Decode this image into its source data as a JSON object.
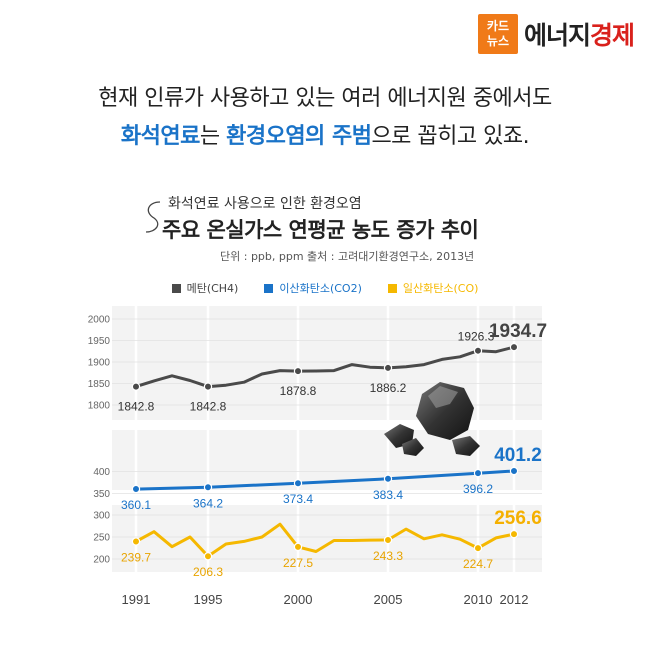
{
  "brand": {
    "badge_line1": "카드",
    "badge_line2": "뉴스",
    "name_part1": "에너지",
    "name_part2": "경제"
  },
  "headline": {
    "line1": "현재 인류가 사용하고 있는 여러 에너지원 중에서도",
    "line2_part1": "화석연료",
    "line2_part2": "는 ",
    "line2_part3": "환경오염의 주범",
    "line2_part4": "으로 꼽히고 있죠."
  },
  "chart_data": {
    "type": "line",
    "subtitle": "화석연료 사용으로 인한 환경오염",
    "title": "주요 온실가스 연평균 농도 증가 추이",
    "source": "단위 : ppb, ppm     출처 : 고려대기환경연구소, 2013년",
    "x_tick_labels": [
      "1991",
      "1995",
      "2000",
      "2005",
      "2010",
      "2012"
    ],
    "x_ticks": [
      1991,
      1995,
      2000,
      2005,
      2010,
      2012
    ],
    "x_range": [
      1991,
      2012
    ],
    "colors": {
      "ch4": "#4a4a4a",
      "co2": "#1a73c8",
      "co": "#f5b800"
    },
    "series": [
      {
        "key": "ch4",
        "name": "메탄(CH4)",
        "x": [
          1991,
          1992,
          1993,
          1994,
          1995,
          1996,
          1997,
          1998,
          1999,
          2000,
          2001,
          2002,
          2003,
          2004,
          2005,
          2006,
          2007,
          2008,
          2009,
          2010,
          2011,
          2012
        ],
        "values": [
          1842.8,
          1856,
          1868,
          1857,
          1842.8,
          1846,
          1853,
          1872,
          1880,
          1878.8,
          1879,
          1880,
          1894,
          1888,
          1886.2,
          1889,
          1894,
          1906,
          1912,
          1926.3,
          1924,
          1934.7
        ],
        "ylim": [
          1800,
          2000
        ],
        "yticks": [
          1800,
          1850,
          1900,
          1950,
          2000
        ],
        "labels": [
          {
            "x": 1991,
            "text": "1842.8"
          },
          {
            "x": 1995,
            "text": "1842.8"
          },
          {
            "x": 2000,
            "text": "1878.8"
          },
          {
            "x": 2005,
            "text": "1886.2"
          },
          {
            "x": 2010,
            "text": "1926.3"
          },
          {
            "x": 2012,
            "text": "1934.7",
            "big": true
          }
        ]
      },
      {
        "key": "co2",
        "name": "이산화탄소(CO2)",
        "x": [
          1991,
          1995,
          2000,
          2005,
          2010,
          2012
        ],
        "values": [
          360.1,
          364.2,
          373.4,
          383.4,
          396.2,
          401.2
        ],
        "ylim": [
          335,
          410
        ],
        "yticks": [
          350,
          400
        ],
        "labels": [
          {
            "x": 1991,
            "text": "360.1"
          },
          {
            "x": 1995,
            "text": "364.2"
          },
          {
            "x": 2000,
            "text": "373.4"
          },
          {
            "x": 2005,
            "text": "383.4"
          },
          {
            "x": 2010,
            "text": "396.2"
          },
          {
            "x": 2012,
            "text": "401.2",
            "big": true
          }
        ]
      },
      {
        "key": "co",
        "name": "일산화탄소(CO)",
        "x": [
          1991,
          1992,
          1993,
          1994,
          1995,
          1996,
          1997,
          1998,
          1999,
          2000,
          2001,
          2002,
          2003,
          2004,
          2005,
          2006,
          2007,
          2008,
          2009,
          2010,
          2011,
          2012
        ],
        "values": [
          239.7,
          262,
          228,
          250,
          206.3,
          234,
          240,
          250,
          279,
          227.5,
          217,
          242,
          242,
          243,
          243.3,
          268,
          246,
          255,
          245,
          224.7,
          248,
          256.6
        ],
        "ylim": [
          200,
          300
        ],
        "yticks": [
          200,
          250,
          300
        ],
        "labels": [
          {
            "x": 1991,
            "text": "239.7"
          },
          {
            "x": 1995,
            "text": "206.3"
          },
          {
            "x": 2000,
            "text": "227.5"
          },
          {
            "x": 2005,
            "text": "243.3"
          },
          {
            "x": 2010,
            "text": "224.7"
          },
          {
            "x": 2012,
            "text": "256.6",
            "big": true
          }
        ]
      }
    ]
  }
}
